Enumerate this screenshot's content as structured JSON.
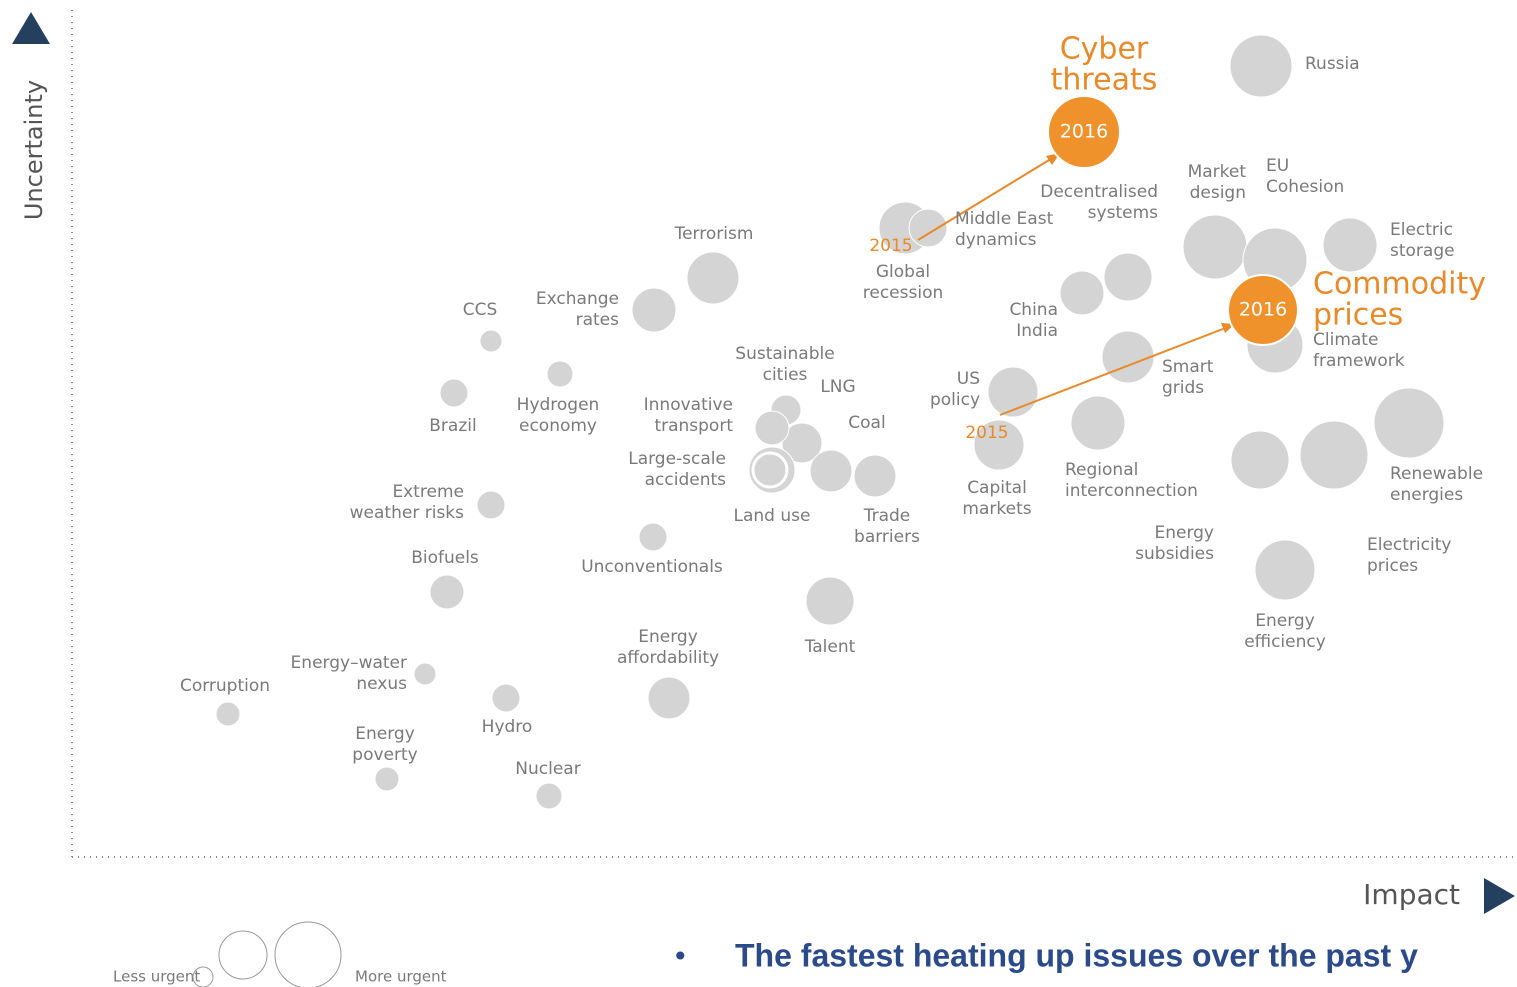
{
  "axes": {
    "y_label": "Uncertainty",
    "x_label": "Impact"
  },
  "nodes": [
    {
      "label": [
        "Russia"
      ]
    },
    {
      "label": [
        "Cyber",
        "threats"
      ],
      "inner": "2016"
    },
    {
      "label": [
        "Global",
        "recession"
      ]
    },
    {
      "label": [
        "Middle East",
        "dynamics"
      ]
    },
    {
      "label": [
        "Decentralised",
        "systems"
      ]
    },
    {
      "label": [
        "China",
        "India"
      ]
    },
    {
      "label": [
        "Market",
        "design"
      ]
    },
    {
      "label": [
        "EU",
        "Cohesion"
      ]
    },
    {
      "label": [
        "Electric",
        "storage"
      ]
    },
    {
      "label": [
        "Commodity",
        "prices"
      ],
      "inner": "2016"
    },
    {
      "label": [
        "Climate",
        "framework"
      ]
    },
    {
      "label": [
        "Smart",
        "grids"
      ]
    },
    {
      "label": [
        "US",
        "policy"
      ]
    },
    {
      "label": [
        "Capital",
        "markets"
      ]
    },
    {
      "label": [
        "Regional",
        "interconnection"
      ]
    },
    {
      "label": [
        "Energy",
        "subsidies"
      ]
    },
    {
      "label": [
        "Electricity",
        "prices"
      ]
    },
    {
      "label": [
        "Renewable",
        "energies"
      ]
    },
    {
      "label": [
        "Energy",
        "efficiency"
      ]
    },
    {
      "label": [
        "Terrorism"
      ]
    },
    {
      "label": [
        "Exchange",
        "rates"
      ]
    },
    {
      "label": [
        "CCS"
      ]
    },
    {
      "label": [
        "Hydrogen",
        "economy"
      ]
    },
    {
      "label": [
        "Brazil"
      ]
    },
    {
      "label": [
        "Sustainable",
        "cities"
      ]
    },
    {
      "label": [
        "LNG"
      ]
    },
    {
      "label": [
        "Innovative",
        "transport"
      ]
    },
    {
      "label": [
        "Coal"
      ]
    },
    {
      "label": [
        "Large-scale",
        "accidents"
      ]
    },
    {
      "label": [
        "Land use"
      ]
    },
    {
      "label": [
        "Trade",
        "barriers"
      ]
    },
    {
      "label": [
        "Extreme",
        "weather risks"
      ]
    },
    {
      "label": [
        "Unconventionals"
      ]
    },
    {
      "label": [
        "Biofuels"
      ]
    },
    {
      "label": [
        "Talent"
      ]
    },
    {
      "label": [
        "Energy",
        "affordability"
      ]
    },
    {
      "label": [
        "Energy–water",
        "nexus"
      ]
    },
    {
      "label": [
        "Corruption"
      ]
    },
    {
      "label": [
        "Hydro"
      ]
    },
    {
      "label": [
        "Energy",
        "poverty"
      ]
    },
    {
      "label": [
        "Nuclear"
      ]
    }
  ],
  "annotations": [
    "2015",
    "2015"
  ],
  "legend": {
    "less": "Less urgent",
    "more": "More urgent"
  },
  "bullet": "The fastest heating up issues over the past y"
}
